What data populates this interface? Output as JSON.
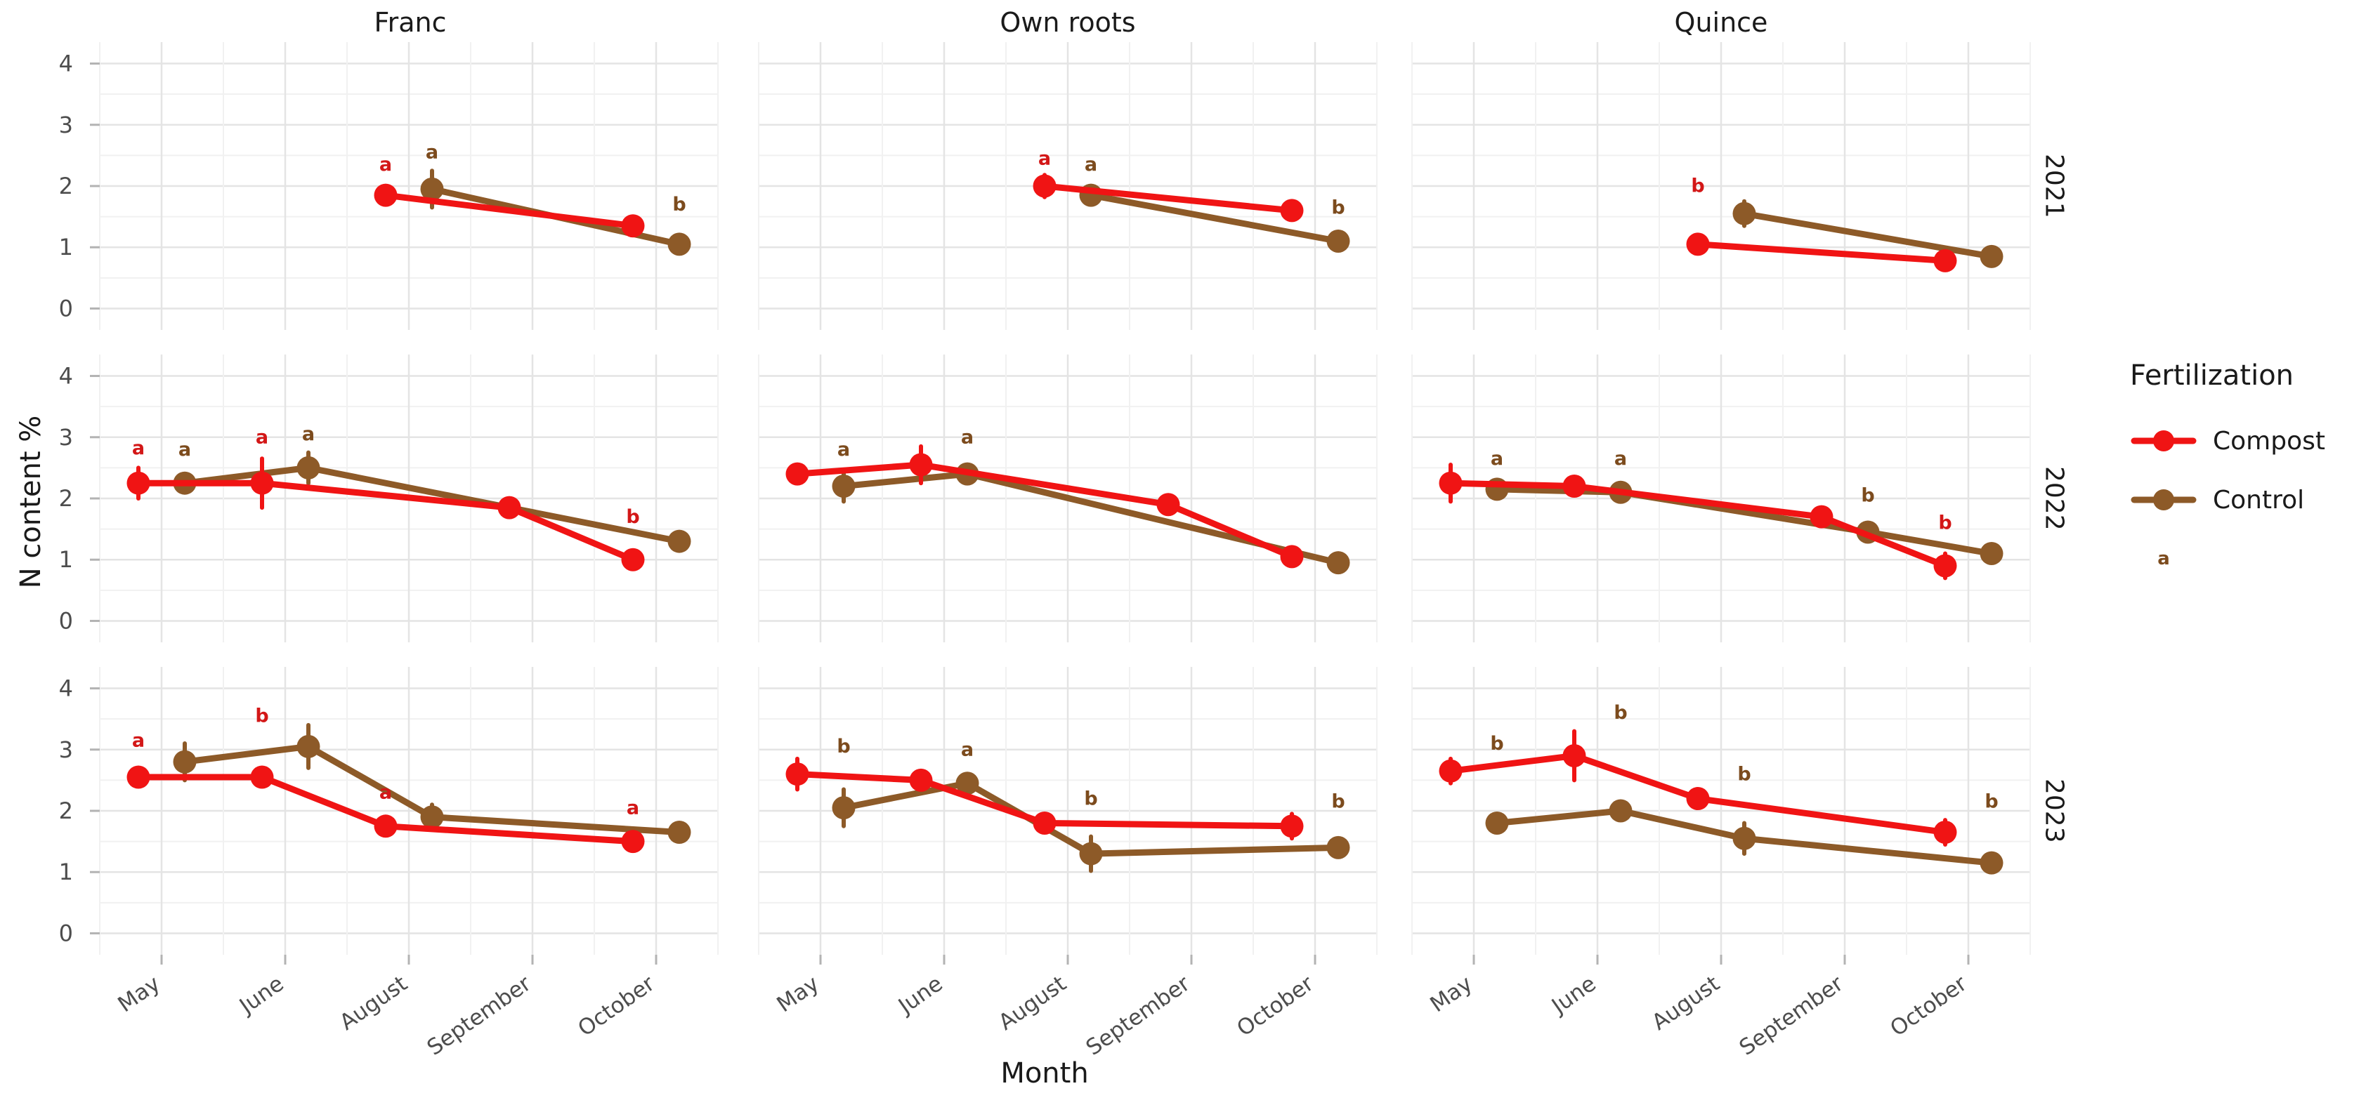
{
  "legend": {
    "title": "Fertilization",
    "items": [
      {
        "label": "Compost",
        "series": "Compost"
      },
      {
        "label": "Control",
        "series": "Control"
      },
      {
        "label": "",
        "series": "Control",
        "key_letter": "a"
      }
    ]
  },
  "chart_data": {
    "type": "line",
    "title": "",
    "xlabel": "Month",
    "ylabel": "N content %",
    "x_categories": [
      "May",
      "June",
      "August",
      "September",
      "October"
    ],
    "col_facets": [
      "Franc",
      "Own roots",
      "Quince"
    ],
    "row_facets": [
      "2021",
      "2022",
      "2023"
    ],
    "ylim": [
      0,
      4
    ],
    "yticks": [
      0,
      1,
      2,
      3,
      4
    ],
    "grid": true,
    "legend_position": "right",
    "series_colors": {
      "Compost": "#f01414",
      "Control": "#8d5a28"
    },
    "letter_colors": {
      "Compost": "#d31717",
      "Control": "#7c4b1d"
    },
    "panels": [
      {
        "row": "2021",
        "col": "Franc",
        "series": [
          {
            "name": "Control",
            "points": [
              {
                "x": "August",
                "y": 1.95,
                "err": 0.3
              },
              {
                "x": "October",
                "y": 1.05,
                "err": 0.05
              }
            ],
            "letters": [
              {
                "x": "August",
                "label": "a",
                "y": 2.45
              },
              {
                "x": "October",
                "label": "b",
                "y": 1.6
              }
            ]
          },
          {
            "name": "Compost",
            "points": [
              {
                "x": "August",
                "y": 1.85,
                "err": 0.12
              },
              {
                "x": "October",
                "y": 1.35,
                "err": 0.15
              }
            ],
            "letters": [
              {
                "x": "August",
                "label": "a",
                "y": 2.25
              }
            ]
          }
        ]
      },
      {
        "row": "2021",
        "col": "Own roots",
        "series": [
          {
            "name": "Control",
            "points": [
              {
                "x": "August",
                "y": 1.85,
                "err": 0.1
              },
              {
                "x": "October",
                "y": 1.1,
                "err": 0.05
              }
            ],
            "letters": [
              {
                "x": "August",
                "label": "a",
                "y": 2.25
              },
              {
                "x": "October",
                "label": "b",
                "y": 1.55
              }
            ]
          },
          {
            "name": "Compost",
            "points": [
              {
                "x": "August",
                "y": 2.0,
                "err": 0.18
              },
              {
                "x": "October",
                "y": 1.6,
                "err": 0.15
              }
            ],
            "letters": [
              {
                "x": "August",
                "label": "a",
                "y": 2.35
              }
            ]
          }
        ]
      },
      {
        "row": "2021",
        "col": "Quince",
        "series": [
          {
            "name": "Control",
            "points": [
              {
                "x": "August",
                "y": 1.55,
                "err": 0.2
              },
              {
                "x": "October",
                "y": 0.85,
                "err": 0.05
              }
            ],
            "letters": []
          },
          {
            "name": "Compost",
            "points": [
              {
                "x": "August",
                "y": 1.05,
                "err": 0.1
              },
              {
                "x": "October",
                "y": 0.78,
                "err": 0.08
              }
            ],
            "letters": [
              {
                "x": "August",
                "label": "b",
                "y": 1.9
              }
            ]
          }
        ]
      },
      {
        "row": "2022",
        "col": "Franc",
        "series": [
          {
            "name": "Control",
            "points": [
              {
                "x": "May",
                "y": 2.25,
                "err": 0.15
              },
              {
                "x": "June",
                "y": 2.5,
                "err": 0.25
              },
              {
                "x": "October",
                "y": 1.3,
                "err": 0.15
              }
            ],
            "letters": [
              {
                "x": "May",
                "label": "a",
                "y": 2.7
              },
              {
                "x": "June",
                "label": "a",
                "y": 2.95
              }
            ]
          },
          {
            "name": "Compost",
            "points": [
              {
                "x": "May",
                "y": 2.25,
                "err": 0.25
              },
              {
                "x": "June",
                "y": 2.25,
                "err": 0.4
              },
              {
                "x": "September",
                "y": 1.85,
                "err": 0.05
              },
              {
                "x": "October",
                "y": 1.0,
                "err": 0.15
              }
            ],
            "letters": [
              {
                "x": "May",
                "label": "a",
                "y": 2.72
              },
              {
                "x": "June",
                "label": "a",
                "y": 2.9
              },
              {
                "x": "October",
                "label": "b",
                "y": 1.6
              }
            ]
          }
        ]
      },
      {
        "row": "2022",
        "col": "Own roots",
        "series": [
          {
            "name": "Control",
            "points": [
              {
                "x": "May",
                "y": 2.2,
                "err": 0.25
              },
              {
                "x": "June",
                "y": 2.4,
                "err": 0.15
              },
              {
                "x": "October",
                "y": 0.95,
                "err": 0.15
              }
            ],
            "letters": [
              {
                "x": "May",
                "label": "a",
                "y": 2.7
              },
              {
                "x": "June",
                "label": "a",
                "y": 2.9
              }
            ]
          },
          {
            "name": "Compost",
            "points": [
              {
                "x": "May",
                "y": 2.4,
                "err": 0.15
              },
              {
                "x": "June",
                "y": 2.55,
                "err": 0.3
              },
              {
                "x": "September",
                "y": 1.9,
                "err": 0.05
              },
              {
                "x": "October",
                "y": 1.05,
                "err": 0.1
              }
            ],
            "letters": []
          }
        ]
      },
      {
        "row": "2022",
        "col": "Quince",
        "series": [
          {
            "name": "Control",
            "points": [
              {
                "x": "May",
                "y": 2.15,
                "err": 0.1
              },
              {
                "x": "June",
                "y": 2.1,
                "err": 0.1
              },
              {
                "x": "September",
                "y": 1.45,
                "err": 0.12
              },
              {
                "x": "October",
                "y": 1.1,
                "err": 0.08
              }
            ],
            "letters": [
              {
                "x": "May",
                "label": "a",
                "y": 2.55
              },
              {
                "x": "June",
                "label": "a",
                "y": 2.55
              },
              {
                "x": "September",
                "label": "b",
                "y": 1.95
              }
            ]
          },
          {
            "name": "Compost",
            "points": [
              {
                "x": "May",
                "y": 2.25,
                "err": 0.3
              },
              {
                "x": "June",
                "y": 2.2,
                "err": 0.15
              },
              {
                "x": "September",
                "y": 1.7,
                "err": 0.12
              },
              {
                "x": "October",
                "y": 0.9,
                "err": 0.2
              }
            ],
            "letters": [
              {
                "x": "October",
                "label": "b",
                "y": 1.5
              }
            ]
          }
        ]
      },
      {
        "row": "2023",
        "col": "Franc",
        "series": [
          {
            "name": "Control",
            "points": [
              {
                "x": "May",
                "y": 2.8,
                "err": 0.3
              },
              {
                "x": "June",
                "y": 3.05,
                "err": 0.35
              },
              {
                "x": "August",
                "y": 1.9,
                "err": 0.2
              },
              {
                "x": "October",
                "y": 1.65,
                "err": 0.15
              }
            ],
            "letters": []
          },
          {
            "name": "Compost",
            "points": [
              {
                "x": "May",
                "y": 2.55,
                "err": 0.1
              },
              {
                "x": "June",
                "y": 2.55,
                "err": 0.12
              },
              {
                "x": "August",
                "y": 1.75,
                "err": 0.15
              },
              {
                "x": "October",
                "y": 1.5,
                "err": 0.12
              }
            ],
            "letters": [
              {
                "x": "May",
                "label": "a",
                "y": 3.05
              },
              {
                "x": "June",
                "label": "b",
                "y": 3.45
              },
              {
                "x": "August",
                "label": "a",
                "y": 2.2
              },
              {
                "x": "October",
                "label": "a",
                "y": 1.95
              }
            ]
          }
        ]
      },
      {
        "row": "2023",
        "col": "Own roots",
        "series": [
          {
            "name": "Control",
            "points": [
              {
                "x": "May",
                "y": 2.05,
                "err": 0.3
              },
              {
                "x": "June",
                "y": 2.45,
                "err": 0.1
              },
              {
                "x": "August",
                "y": 1.3,
                "err": 0.28
              },
              {
                "x": "October",
                "y": 1.4,
                "err": 0.1
              }
            ],
            "letters": [
              {
                "x": "May",
                "label": "b",
                "y": 2.95
              },
              {
                "x": "June",
                "label": "a",
                "y": 2.9
              },
              {
                "x": "August",
                "label": "b",
                "y": 2.1
              },
              {
                "x": "October",
                "label": "b",
                "y": 2.05
              }
            ]
          },
          {
            "name": "Compost",
            "points": [
              {
                "x": "May",
                "y": 2.6,
                "err": 0.25
              },
              {
                "x": "June",
                "y": 2.5,
                "err": 0.15
              },
              {
                "x": "August",
                "y": 1.8,
                "err": 0.1
              },
              {
                "x": "October",
                "y": 1.75,
                "err": 0.2
              }
            ],
            "letters": []
          }
        ]
      },
      {
        "row": "2023",
        "col": "Quince",
        "series": [
          {
            "name": "Control",
            "points": [
              {
                "x": "May",
                "y": 1.8,
                "err": 0.1
              },
              {
                "x": "June",
                "y": 2.0,
                "err": 0.1
              },
              {
                "x": "August",
                "y": 1.55,
                "err": 0.25
              },
              {
                "x": "October",
                "y": 1.15,
                "err": 0.1
              }
            ],
            "letters": [
              {
                "x": "May",
                "label": "b",
                "y": 3.0
              },
              {
                "x": "June",
                "label": "b",
                "y": 3.5
              },
              {
                "x": "August",
                "label": "b",
                "y": 2.5
              },
              {
                "x": "October",
                "label": "b",
                "y": 2.05
              }
            ]
          },
          {
            "name": "Compost",
            "points": [
              {
                "x": "May",
                "y": 2.65,
                "err": 0.2
              },
              {
                "x": "June",
                "y": 2.9,
                "err": 0.4
              },
              {
                "x": "August",
                "y": 2.2,
                "err": 0.15
              },
              {
                "x": "October",
                "y": 1.65,
                "err": 0.2
              }
            ],
            "letters": []
          }
        ]
      }
    ]
  }
}
